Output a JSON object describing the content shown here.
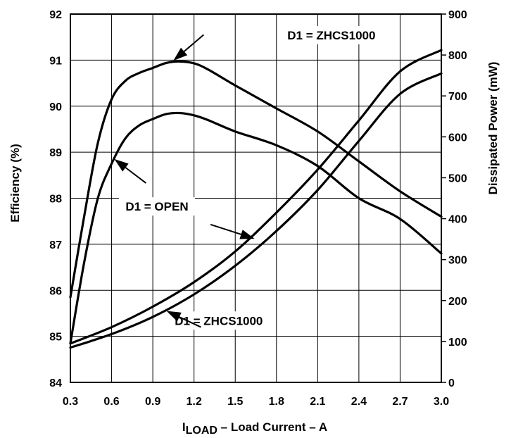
{
  "chart_data": {
    "type": "line",
    "title": "",
    "xlabel": {
      "main": "I",
      "sub": "LOAD",
      "rest": " – Load Current – A"
    },
    "ylabel_left": "Efficiency (%)",
    "ylabel_right": "Dissipated Power (mW)",
    "xlim": [
      0.3,
      3.0
    ],
    "ylim_left": [
      84,
      92
    ],
    "ylim_right": [
      0,
      900
    ],
    "x_ticks": [
      "0.3",
      "0.6",
      "0.9",
      "1.2",
      "1.5",
      "1.8",
      "2.1",
      "2.4",
      "2.7",
      "3.0"
    ],
    "y_left_ticks": [
      "84",
      "85",
      "86",
      "87",
      "88",
      "89",
      "90",
      "91",
      "92"
    ],
    "y_right_ticks": [
      "0",
      "100",
      "200",
      "300",
      "400",
      "500",
      "600",
      "700",
      "800",
      "900"
    ],
    "grid": true,
    "series": [
      {
        "axis": "left",
        "x": [
          0.3,
          0.4,
          0.5,
          0.6,
          0.7,
          0.8,
          0.9,
          1.0,
          1.1,
          1.2,
          1.3,
          1.5,
          1.8,
          2.1,
          2.4,
          2.7,
          3.0
        ],
        "y": [
          85.85,
          87.6,
          89.2,
          90.15,
          90.55,
          90.72,
          90.83,
          90.94,
          90.97,
          90.93,
          90.8,
          90.45,
          89.95,
          89.45,
          88.8,
          88.15,
          87.6
        ]
      },
      {
        "axis": "left",
        "x": [
          0.3,
          0.4,
          0.5,
          0.6,
          0.7,
          0.8,
          0.9,
          1.0,
          1.1,
          1.2,
          1.3,
          1.5,
          1.8,
          2.1,
          2.4,
          2.7,
          3.0
        ],
        "y": [
          84.85,
          86.6,
          88.0,
          88.75,
          89.3,
          89.58,
          89.72,
          89.83,
          89.85,
          89.8,
          89.7,
          89.45,
          89.15,
          88.7,
          88.0,
          87.55,
          86.8
        ]
      },
      {
        "axis": "right",
        "x": [
          0.3,
          0.6,
          0.9,
          1.2,
          1.5,
          1.8,
          2.1,
          2.4,
          2.7,
          3.0
        ],
        "y": [
          95,
          135,
          185,
          245,
          320,
          415,
          520,
          640,
          760,
          812
        ]
      },
      {
        "axis": "right",
        "x": [
          0.3,
          0.6,
          0.9,
          1.2,
          1.5,
          1.8,
          2.1,
          2.4,
          2.7,
          3.0
        ],
        "y": [
          85,
          118,
          160,
          215,
          285,
          370,
          470,
          590,
          705,
          755
        ]
      }
    ],
    "annotations": [
      {
        "text": "D1 = ZHCS1000",
        "tx": 2.2,
        "ty_left": 91.45,
        "ax": 1.27,
        "ay_left": 91.55,
        "hx": 1.05,
        "hy_left": 90.99
      },
      {
        "text": "D1 = OPEN",
        "tx": 0.93,
        "ty_left": 87.73,
        "ax": 0.85,
        "ay_left": 88.33,
        "hx": 0.62,
        "hy_left": 88.85
      },
      {
        "text": "D1 = OPEN",
        "tx": null,
        "ty_left": null,
        "ax": 1.32,
        "ay_left": 87.43,
        "hx": 1.64,
        "hy_left": 87.12
      },
      {
        "text": "D1 = ZHCS1000",
        "tx": 1.38,
        "ty_left": 85.25,
        "ax": 1.25,
        "ay_left": 85.2,
        "hx": 1.0,
        "hy_left": 85.55
      }
    ]
  }
}
